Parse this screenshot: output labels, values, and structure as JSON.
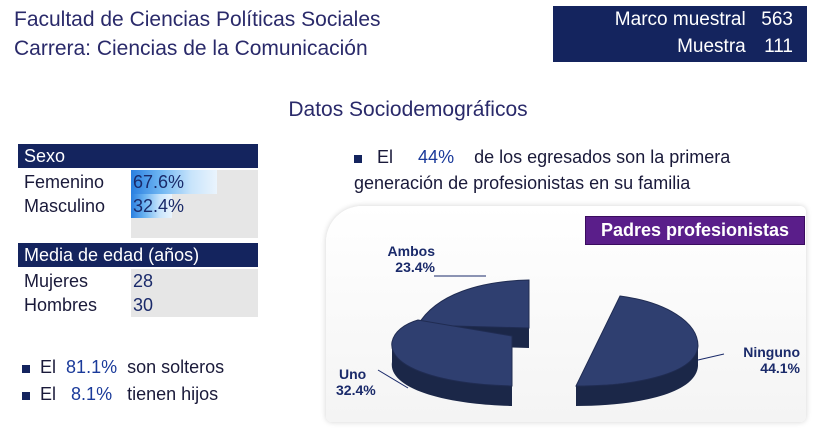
{
  "header": {
    "line1": "Facultad de Ciencias Políticas Sociales",
    "line2": "Carrera: Ciencias de la Comunicación"
  },
  "sample": {
    "marco_label": "Marco muestral",
    "marco_value": "563",
    "muestra_label": "Muestra",
    "muestra_value": "111"
  },
  "section_title": "Datos Sociodemográficos",
  "sexo": {
    "header": "Sexo",
    "rows": [
      {
        "label": "Femenino",
        "value": "67.6%",
        "fraction": 0.676
      },
      {
        "label": "Masculino",
        "value": "32.4%",
        "fraction": 0.324
      }
    ]
  },
  "edad": {
    "header": "Media de edad (años)",
    "rows": [
      {
        "label": "Mujeres",
        "value": "28"
      },
      {
        "label": "Hombres",
        "value": "30"
      }
    ]
  },
  "bullets": [
    {
      "pre": "El",
      "value": "81.1%",
      "post": "son solteros"
    },
    {
      "pre": "El",
      "value": "8.1%",
      "post": "tienen hijos"
    }
  ],
  "first_gen": {
    "pre": "El",
    "value": "44%",
    "post": "de los egresados son la primera",
    "line2": "generación de profesionistas en su familia"
  },
  "chart_data": {
    "type": "pie",
    "title": "Padres profesionistas",
    "slices": [
      {
        "label": "Ninguno",
        "value": 44.1,
        "value_label": "44.1%"
      },
      {
        "label": "Uno",
        "value": 32.4,
        "value_label": "32.4%"
      },
      {
        "label": "Ambos",
        "value": 23.4,
        "value_label": "23.4%"
      }
    ],
    "exploded": true,
    "style": "3d",
    "colors": {
      "slice": "#2f3f70",
      "side": "#1b2748",
      "title_bg": "#5a1e8a"
    }
  }
}
